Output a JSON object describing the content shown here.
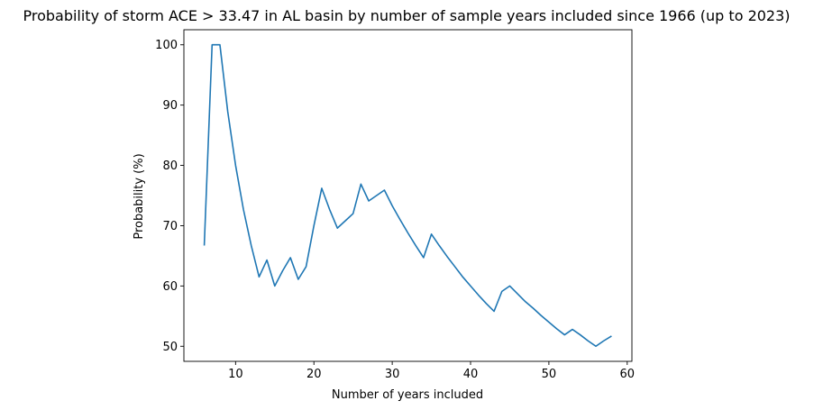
{
  "chart_data": {
    "type": "line",
    "title": "Probability of storm ACE > 33.47 in AL basin by number of sample years included since 1966 (up to 2023)",
    "xlabel": "Number of years included",
    "ylabel": "Probability (%)",
    "xlim": [
      3.4,
      60.6
    ],
    "ylim": [
      47.5,
      102.5
    ],
    "xticks": [
      10,
      20,
      30,
      40,
      50,
      60
    ],
    "yticks": [
      50,
      60,
      70,
      80,
      90,
      100
    ],
    "grid": false,
    "legend": "none",
    "series": [
      {
        "color": "#1f77b4",
        "x": [
          6,
          7,
          8,
          9,
          10,
          11,
          12,
          13,
          14,
          15,
          16,
          17,
          18,
          19,
          20,
          21,
          22,
          23,
          24,
          25,
          26,
          27,
          28,
          29,
          30,
          31,
          32,
          33,
          34,
          35,
          36,
          37,
          38,
          39,
          40,
          41,
          42,
          43,
          44,
          45,
          46,
          47,
          48,
          49,
          50,
          51,
          52,
          53,
          54,
          55,
          56,
          57,
          58
        ],
        "y": [
          66.7,
          100,
          100,
          88.9,
          80,
          72.7,
          66.7,
          61.5,
          64.3,
          60,
          62.5,
          64.7,
          61.1,
          63.2,
          70,
          76.2,
          72.7,
          69.6,
          70.8,
          72,
          76.9,
          74.1,
          75,
          75.9,
          73.3,
          71,
          68.8,
          66.7,
          64.7,
          68.6,
          66.7,
          64.9,
          63.2,
          61.5,
          60,
          58.5,
          57.1,
          55.8,
          59.1,
          60,
          58.7,
          57.4,
          56.3,
          55.1,
          54,
          52.9,
          51.9,
          52.8,
          51.9,
          50.9,
          50,
          50.9,
          51.7
        ]
      }
    ]
  }
}
